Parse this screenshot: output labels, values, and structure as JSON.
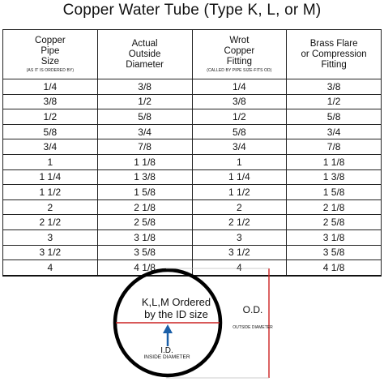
{
  "title": "Copper Water Tube (Type K, L, or M)",
  "table": {
    "headers": [
      {
        "text": "Copper\nPipe\nSize",
        "sub": "(AS IT IS ORDERED BY)"
      },
      {
        "text": "Actual\nOutside\nDiameter",
        "sub": ""
      },
      {
        "text": "Wrot\nCopper\nFitting",
        "sub": "(CALLED BY PIPE SIZE-FITS OD)"
      },
      {
        "text": "Brass Flare\nor Compression\nFitting",
        "sub": ""
      }
    ],
    "rows": [
      [
        "1/4",
        "3/8",
        "1/4",
        "3/8"
      ],
      [
        "3/8",
        "1/2",
        "3/8",
        "1/2"
      ],
      [
        "1/2",
        "5/8",
        "1/2",
        "5/8"
      ],
      [
        "5/8",
        "3/4",
        "5/8",
        "3/4"
      ],
      [
        "3/4",
        "7/8",
        "3/4",
        "7/8"
      ],
      [
        "1",
        "1 1/8",
        "1",
        "1 1/8"
      ],
      [
        "1 1/4",
        "1 3/8",
        "1 1/4",
        "1 3/8"
      ],
      [
        "1 1/2",
        "1 5/8",
        "1 1/2",
        "1 5/8"
      ],
      [
        "2",
        "2 1/8",
        "2",
        "2 1/8"
      ],
      [
        "2 1/2",
        "2 5/8",
        "2 1/2",
        "2 5/8"
      ],
      [
        "3",
        "3 1/8",
        "3",
        "3 1/8"
      ],
      [
        "3 1/2",
        "3 5/8",
        "3 1/2",
        "3 5/8"
      ],
      [
        "4",
        "4 1/8",
        "4",
        "4 1/8"
      ]
    ]
  },
  "diagram": {
    "ordered_text": "K,L,M Ordered\nby the ID size",
    "id_label": "I.D.",
    "id_sub": "INSIDE DIAMETER",
    "od_label": "O.D.",
    "od_sub": "OUTSIDE DIAMETER",
    "colors": {
      "circle": "#000000",
      "id_line": "#cc2222",
      "arrow": "#1a5fa8"
    }
  }
}
